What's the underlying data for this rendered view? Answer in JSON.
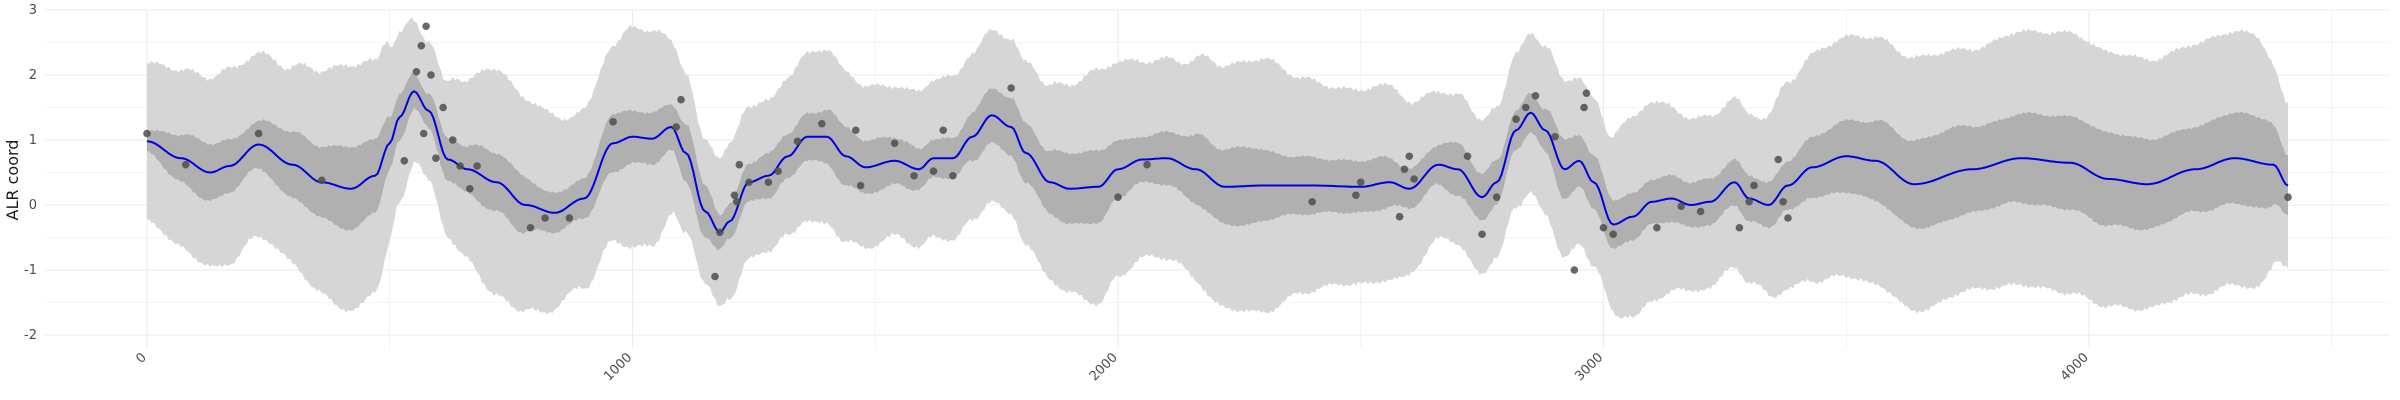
{
  "chart_data": {
    "type": "line",
    "title": "",
    "xlabel": "",
    "ylabel": "ALR coord",
    "xlim": [
      -210,
      4620
    ],
    "ylim": [
      -2.2,
      3.0
    ],
    "x_ticks": [
      0,
      1000,
      2000,
      3000,
      4000
    ],
    "y_ticks": [
      -2,
      -1,
      0,
      1,
      2,
      3
    ],
    "grid": true,
    "legend": "none",
    "colors": {
      "mean_line": "#0000e0",
      "inner_band": "#b0b0b0",
      "outer_band": "#d6d6d6",
      "points": "#4d4d4d",
      "grid": "#ebebeb"
    },
    "mean_curve": {
      "x": [
        0,
        70,
        130,
        170,
        230,
        300,
        360,
        420,
        470,
        500,
        520,
        550,
        580,
        620,
        660,
        720,
        780,
        840,
        900,
        960,
        1000,
        1040,
        1080,
        1110,
        1150,
        1180,
        1200,
        1240,
        1280,
        1320,
        1360,
        1400,
        1440,
        1480,
        1540,
        1590,
        1620,
        1660,
        1700,
        1740,
        1780,
        1810,
        1860,
        1900,
        1960,
        2000,
        2050,
        2100,
        2160,
        2220,
        2300,
        2400,
        2500,
        2560,
        2600,
        2660,
        2700,
        2750,
        2780,
        2820,
        2850,
        2880,
        2920,
        2950,
        2980,
        3020,
        3060,
        3100,
        3140,
        3180,
        3220,
        3270,
        3300,
        3340,
        3380,
        3430,
        3500,
        3560,
        3640,
        3760,
        3860,
        3960,
        4040,
        4120,
        4220,
        4300,
        4380,
        4410
      ],
      "y": [
        0.98,
        0.72,
        0.5,
        0.6,
        0.93,
        0.62,
        0.35,
        0.25,
        0.45,
        0.95,
        1.35,
        1.75,
        1.45,
        0.7,
        0.55,
        0.35,
        0.0,
        -0.12,
        0.1,
        0.95,
        1.05,
        1.02,
        1.2,
        0.8,
        -0.1,
        -0.42,
        -0.25,
        0.35,
        0.45,
        0.75,
        1.05,
        1.05,
        0.75,
        0.58,
        0.68,
        0.55,
        0.72,
        0.72,
        1.05,
        1.38,
        1.2,
        0.8,
        0.35,
        0.25,
        0.28,
        0.55,
        0.7,
        0.72,
        0.55,
        0.28,
        0.3,
        0.3,
        0.28,
        0.35,
        0.25,
        0.62,
        0.55,
        0.12,
        0.35,
        1.15,
        1.42,
        1.15,
        0.55,
        0.68,
        0.35,
        -0.3,
        -0.18,
        0.05,
        0.1,
        0.0,
        0.05,
        0.35,
        0.1,
        0.0,
        0.3,
        0.58,
        0.75,
        0.68,
        0.32,
        0.55,
        0.72,
        0.65,
        0.4,
        0.32,
        0.55,
        0.72,
        0.62,
        0.3
      ]
    },
    "inner_band_halfwidth": {
      "x": [
        0,
        60,
        120,
        170,
        220,
        290,
        360,
        420,
        470,
        520,
        560,
        600,
        650,
        700,
        760,
        830,
        900,
        960,
        1000,
        1040,
        1080,
        1110,
        1150,
        1190,
        1240,
        1300,
        1360,
        1420,
        1500,
        1560,
        1600,
        1660,
        1720,
        1780,
        1840,
        1900,
        1960,
        2000,
        2040,
        2100,
        2180,
        2260,
        2360,
        2460,
        2540,
        2600,
        2650,
        2700,
        2760,
        2820,
        2860,
        2920,
        2960,
        3000,
        3060,
        3120,
        3180,
        3240,
        3300,
        3360,
        3420,
        3500,
        3600,
        3700,
        3800,
        3900,
        4000,
        4100,
        4200,
        4300,
        4360,
        4410
      ],
      "y": [
        0.15,
        0.35,
        0.45,
        0.4,
        0.35,
        0.5,
        0.55,
        0.65,
        0.55,
        0.35,
        0.25,
        0.3,
        0.35,
        0.45,
        0.45,
        0.3,
        0.3,
        0.45,
        0.4,
        0.4,
        0.35,
        0.45,
        0.4,
        0.25,
        0.3,
        0.35,
        0.35,
        0.45,
        0.4,
        0.35,
        0.3,
        0.3,
        0.4,
        0.45,
        0.45,
        0.55,
        0.55,
        0.45,
        0.35,
        0.4,
        0.55,
        0.6,
        0.45,
        0.4,
        0.4,
        0.3,
        0.3,
        0.4,
        0.35,
        0.3,
        0.3,
        0.45,
        0.4,
        0.4,
        0.35,
        0.35,
        0.35,
        0.35,
        0.35,
        0.35,
        0.45,
        0.55,
        0.65,
        0.7,
        0.65,
        0.7,
        0.72,
        0.7,
        0.65,
        0.7,
        0.7,
        0.45
      ]
    },
    "outer_band_halfwidth": {
      "x": [
        0,
        60,
        120,
        170,
        220,
        280,
        350,
        420,
        480,
        520,
        560,
        600,
        650,
        720,
        800,
        880,
        960,
        1000,
        1040,
        1090,
        1140,
        1180,
        1220,
        1280,
        1340,
        1400,
        1480,
        1540,
        1600,
        1660,
        1720,
        1780,
        1840,
        1900,
        1960,
        2000,
        2060,
        2120,
        2200,
        2300,
        2380,
        2460,
        2560,
        2620,
        2680,
        2720,
        2780,
        2840,
        2900,
        2960,
        3000,
        3040,
        3100,
        3160,
        3240,
        3320,
        3380,
        3460,
        3560,
        3660,
        3760,
        3860,
        3960,
        4060,
        4160,
        4260,
        4340,
        4410
      ],
      "y": [
        1.2,
        1.35,
        1.45,
        1.5,
        1.4,
        1.45,
        1.7,
        1.9,
        1.75,
        1.3,
        1.05,
        1.1,
        1.35,
        1.75,
        1.6,
        1.35,
        1.5,
        1.7,
        1.65,
        1.3,
        1.1,
        1.15,
        1.2,
        1.15,
        1.25,
        1.35,
        1.25,
        1.15,
        1.2,
        1.25,
        1.3,
        1.35,
        1.45,
        1.6,
        1.8,
        1.65,
        1.5,
        1.55,
        1.85,
        1.95,
        1.65,
        1.5,
        1.5,
        1.25,
        1.1,
        1.2,
        1.15,
        1.2,
        1.35,
        1.3,
        1.25,
        1.5,
        1.55,
        1.35,
        1.3,
        1.3,
        1.6,
        1.8,
        1.9,
        1.95,
        1.85,
        1.95,
        2.0,
        1.95,
        1.9,
        1.95,
        1.95,
        1.25
      ]
    },
    "points": [
      {
        "x": 0,
        "y": 1.1
      },
      {
        "x": 80,
        "y": 0.62
      },
      {
        "x": 230,
        "y": 1.1
      },
      {
        "x": 360,
        "y": 0.38
      },
      {
        "x": 530,
        "y": 0.68
      },
      {
        "x": 555,
        "y": 2.05
      },
      {
        "x": 565,
        "y": 2.45
      },
      {
        "x": 570,
        "y": 1.1
      },
      {
        "x": 575,
        "y": 2.75
      },
      {
        "x": 585,
        "y": 2.0
      },
      {
        "x": 595,
        "y": 0.72
      },
      {
        "x": 610,
        "y": 1.5
      },
      {
        "x": 630,
        "y": 1.0
      },
      {
        "x": 645,
        "y": 0.6
      },
      {
        "x": 665,
        "y": 0.25
      },
      {
        "x": 680,
        "y": 0.6
      },
      {
        "x": 790,
        "y": -0.35
      },
      {
        "x": 820,
        "y": -0.2
      },
      {
        "x": 870,
        "y": -0.2
      },
      {
        "x": 960,
        "y": 1.28
      },
      {
        "x": 1100,
        "y": 1.62
      },
      {
        "x": 1090,
        "y": 1.2
      },
      {
        "x": 1170,
        "y": -1.1
      },
      {
        "x": 1180,
        "y": -0.42
      },
      {
        "x": 1210,
        "y": 0.15
      },
      {
        "x": 1215,
        "y": 0.05
      },
      {
        "x": 1220,
        "y": 0.62
      },
      {
        "x": 1240,
        "y": 0.35
      },
      {
        "x": 1280,
        "y": 0.35
      },
      {
        "x": 1300,
        "y": 0.52
      },
      {
        "x": 1340,
        "y": 0.98
      },
      {
        "x": 1390,
        "y": 1.25
      },
      {
        "x": 1460,
        "y": 1.15
      },
      {
        "x": 1470,
        "y": 0.3
      },
      {
        "x": 1540,
        "y": 0.95
      },
      {
        "x": 1580,
        "y": 0.45
      },
      {
        "x": 1620,
        "y": 0.52
      },
      {
        "x": 1640,
        "y": 1.15
      },
      {
        "x": 1660,
        "y": 0.45
      },
      {
        "x": 1780,
        "y": 1.8
      },
      {
        "x": 2000,
        "y": 0.12
      },
      {
        "x": 2060,
        "y": 0.62
      },
      {
        "x": 2400,
        "y": 0.05
      },
      {
        "x": 2490,
        "y": 0.15
      },
      {
        "x": 2500,
        "y": 0.35
      },
      {
        "x": 2580,
        "y": -0.18
      },
      {
        "x": 2590,
        "y": 0.55
      },
      {
        "x": 2600,
        "y": 0.75
      },
      {
        "x": 2610,
        "y": 0.4
      },
      {
        "x": 2720,
        "y": 0.75
      },
      {
        "x": 2750,
        "y": -0.45
      },
      {
        "x": 2780,
        "y": 0.12
      },
      {
        "x": 2820,
        "y": 1.32
      },
      {
        "x": 2840,
        "y": 1.5
      },
      {
        "x": 2860,
        "y": 1.68
      },
      {
        "x": 2900,
        "y": 1.05
      },
      {
        "x": 2940,
        "y": -1.0
      },
      {
        "x": 2960,
        "y": 1.5
      },
      {
        "x": 2965,
        "y": 1.72
      },
      {
        "x": 3000,
        "y": -0.35
      },
      {
        "x": 3020,
        "y": -0.45
      },
      {
        "x": 3110,
        "y": -0.35
      },
      {
        "x": 3160,
        "y": -0.02
      },
      {
        "x": 3200,
        "y": -0.1
      },
      {
        "x": 3280,
        "y": -0.35
      },
      {
        "x": 3300,
        "y": 0.05
      },
      {
        "x": 3310,
        "y": 0.3
      },
      {
        "x": 3360,
        "y": 0.7
      },
      {
        "x": 3370,
        "y": 0.05
      },
      {
        "x": 3380,
        "y": -0.2
      },
      {
        "x": 4410,
        "y": 0.12
      }
    ]
  }
}
